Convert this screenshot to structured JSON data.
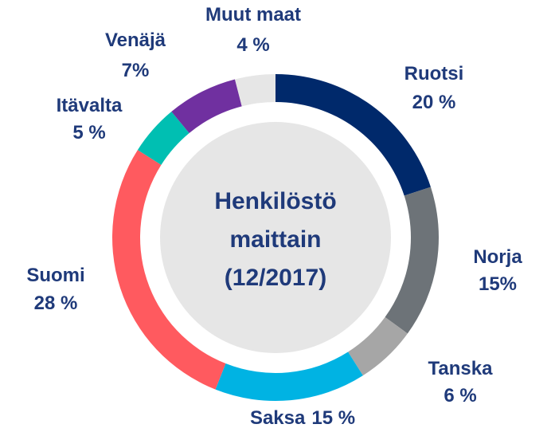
{
  "chart_data": {
    "type": "donut",
    "title": [
      "Henkilöstö",
      "maittain",
      "(12/2017)"
    ],
    "categories": [
      "Ruotsi",
      "Norja",
      "Tanska",
      "Saksa",
      "Suomi",
      "Itävalta",
      "Venäjä",
      "Muut maat"
    ],
    "values": [
      20,
      15,
      6,
      15,
      28,
      5,
      7,
      4
    ],
    "value_labels": [
      "20 %",
      "15%",
      "6 %",
      "15 %",
      "28 %",
      "5 %",
      "7%",
      "4 %"
    ],
    "colors": [
      "#00296b",
      "#6d7378",
      "#a6a6a6",
      "#00b3e3",
      "#ff5a5f",
      "#00bfb2",
      "#7030a0",
      "#e6e6e6"
    ]
  }
}
